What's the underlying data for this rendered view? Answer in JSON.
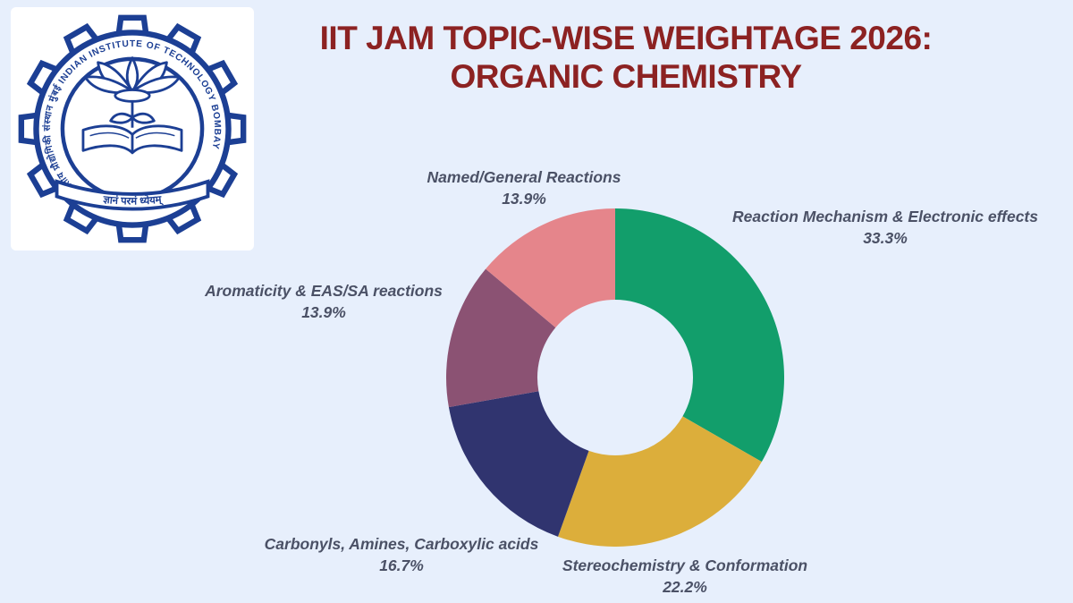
{
  "page": {
    "background": "#e7effc"
  },
  "logo": {
    "circular_text": "भारतीय प्रौद्योगिकी संस्थान मुंबई INDIAN INSTITUTE OF TECHNOLOGY BOMBAY",
    "motto_text": "ज्ञानं परमं ध्येयम्",
    "color": "#1c3f94"
  },
  "title": {
    "line1": "IIT JAM TOPIC-WISE WEIGHTAGE 2026:",
    "line2": "ORGANIC CHEMISTRY",
    "color": "#8c2222"
  },
  "chart_data": {
    "type": "pie",
    "donut": true,
    "start_angle_deg": 0,
    "direction": "clockwise",
    "inner_radius_ratio": 0.46,
    "legend_position": "outside-labels",
    "title": "IIT JAM TOPIC-WISE WEIGHTAGE 2026: ORGANIC CHEMISTRY",
    "categories": [
      "Reaction Mechanism & Electronic effects",
      "Stereochemistry & Conformation",
      "Carbonyls, Amines, Carboxylic acids",
      "Aromaticity & EAS/SA reactions",
      "Named/General Reactions"
    ],
    "values": [
      33.3,
      22.2,
      16.7,
      13.9,
      13.9
    ],
    "labels_pct": [
      "33.3%",
      "22.2%",
      "16.7%",
      "13.9%",
      "13.9%"
    ],
    "colors": [
      "#129e6b",
      "#dcae3b",
      "#30346f",
      "#8b5273",
      "#e5858b"
    ],
    "label_text_color": "#4b5166"
  }
}
